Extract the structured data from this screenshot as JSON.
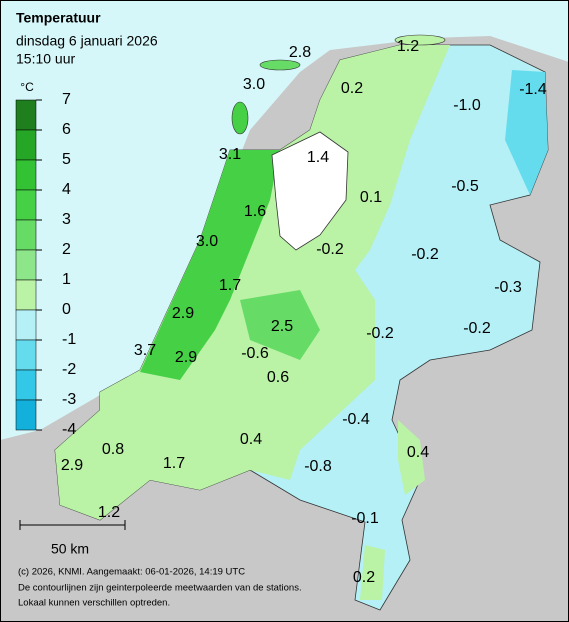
{
  "header": {
    "title": "Temperatuur",
    "date": "dinsdag 6 januari 2026",
    "time": "15:10 uur"
  },
  "legend": {
    "unit": "°C",
    "ticks": [
      7,
      6,
      5,
      4,
      3,
      2,
      1,
      0,
      -1,
      -2,
      -3,
      -4
    ],
    "colors": [
      "#1f7f1f",
      "#26a626",
      "#33c233",
      "#45d045",
      "#66dc66",
      "#8ee68a",
      "#baf2a6",
      "#b4f0f6",
      "#64dced",
      "#33c8e8",
      "#14b0dc"
    ]
  },
  "stations": [
    "2.8",
    "1.2",
    "3.0",
    "0.2",
    "-1.0",
    "-1.4",
    "3.1",
    "1.4",
    "-0.5",
    "0.1",
    "1.6",
    "3.0",
    "-0.2",
    "-0.2",
    "-0.3",
    "1.7",
    "2.9",
    "2.5",
    "-0.2",
    "-0.2",
    "3.7",
    "2.9",
    "-0.6",
    "0.6",
    "-0.4",
    "0.4",
    "0.8",
    "0.4",
    "-0.8",
    "2.9",
    "1.7",
    "1.2",
    "-0.1",
    "0.2"
  ],
  "scale": "50 km",
  "footer": [
    "(c) 2026, KNMI. Aangemaakt: 06-01-2026, 14:19 UTC",
    "De contourlijnen zijn geinterpoleerde meetwaarden van de stations.",
    "Lokaal kunnen verschillen optreden."
  ]
}
